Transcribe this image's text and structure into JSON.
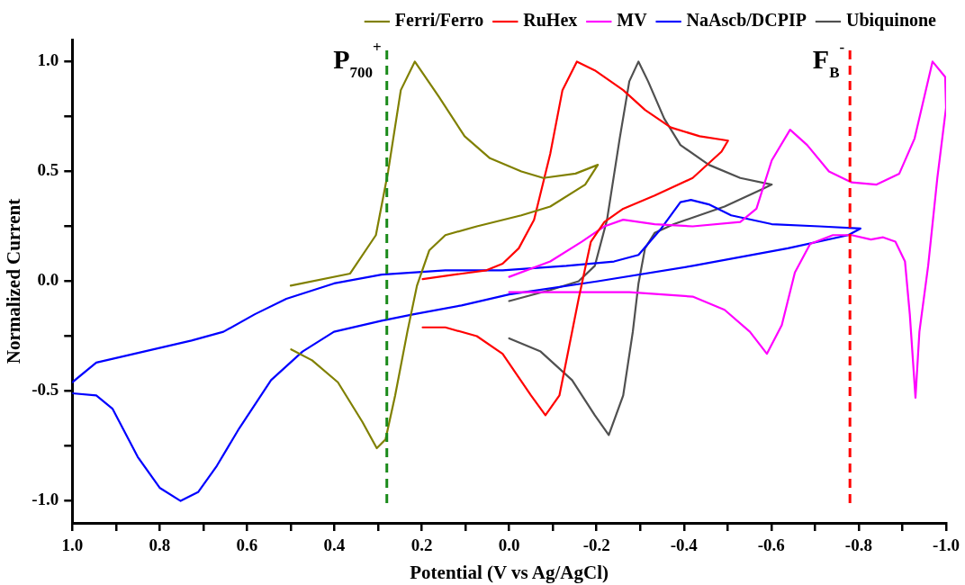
{
  "chart_data": {
    "type": "line",
    "xlabel": "Potential (V vs Ag/AgCl)",
    "ylabel": "Normalized Current",
    "xlim": [
      1.0,
      -1.0
    ],
    "ylim": [
      -1.1,
      1.1
    ],
    "xticks": [
      {
        "value": 1,
        "label": "1.0"
      },
      {
        "value": 0.9,
        "label": null
      },
      {
        "value": 0.8,
        "label": "0.8"
      },
      {
        "value": 0.7,
        "label": null
      },
      {
        "value": 0.6,
        "label": "0.6"
      },
      {
        "value": 0.5,
        "label": null
      },
      {
        "value": 0.4,
        "label": "0.4"
      },
      {
        "value": 0.3,
        "label": null
      },
      {
        "value": 0.2,
        "label": "0.2"
      },
      {
        "value": 0.1,
        "label": null
      },
      {
        "value": 0,
        "label": "0.0"
      },
      {
        "value": -0.1,
        "label": null
      },
      {
        "value": -0.2,
        "label": "-0.2"
      },
      {
        "value": -0.3,
        "label": null
      },
      {
        "value": -0.4,
        "label": "-0.4"
      },
      {
        "value": -0.5,
        "label": null
      },
      {
        "value": -0.6,
        "label": "-0.6"
      },
      {
        "value": -0.7,
        "label": null
      },
      {
        "value": -0.8,
        "label": "-0.8"
      },
      {
        "value": -0.9,
        "label": null
      },
      {
        "value": -1,
        "label": "-1.0"
      }
    ],
    "yticks": [
      {
        "value": -1,
        "label": "-1.0"
      },
      {
        "value": -0.75,
        "label": null
      },
      {
        "value": -0.5,
        "label": "-0.5"
      },
      {
        "value": -0.25,
        "label": null
      },
      {
        "value": 0,
        "label": "0.0"
      },
      {
        "value": 0.25,
        "label": null
      },
      {
        "value": 0.5,
        "label": "0.5"
      },
      {
        "value": 0.75,
        "label": null
      },
      {
        "value": 1,
        "label": "1.0"
      }
    ],
    "grid": false,
    "legend": "top",
    "marker": "none",
    "line_style": "solid",
    "ref_lines": [
      {
        "axis": "x",
        "value": 0.28,
        "label": "P$_{700}$$^{+}$",
        "color": "#1a8a1a",
        "line_style": "dashed"
      },
      {
        "axis": "x",
        "value": -0.78,
        "label": "F$_{B}$$^{-}$",
        "color": "#ff0000",
        "line_style": "dashed"
      }
    ],
    "series": [
      {
        "name": "Ferri/Ferro",
        "color": "#808000",
        "x": [
          0.5,
          0.364,
          0.305,
          0.277,
          0.248,
          0.216,
          0.161,
          0.102,
          0.044,
          -0.028,
          -0.078,
          -0.152,
          -0.203,
          -0.174,
          -0.094,
          -0.028,
          0.074,
          0.146,
          0.183,
          0.211,
          0.233,
          0.261,
          0.283,
          0.303,
          0.336,
          0.392,
          0.451,
          0.499
        ],
        "values": [
          -0.02,
          0.035,
          0.21,
          0.5,
          0.87,
          1.0,
          0.84,
          0.66,
          0.56,
          0.5,
          0.47,
          0.49,
          0.53,
          0.44,
          0.34,
          0.3,
          0.25,
          0.21,
          0.14,
          -0.02,
          -0.23,
          -0.52,
          -0.72,
          -0.76,
          -0.64,
          -0.46,
          -0.36,
          -0.31
        ]
      },
      {
        "name": "RuHex",
        "color": "#ff0000",
        "x": [
          0.198,
          0.052,
          0.015,
          -0.022,
          -0.057,
          -0.094,
          -0.122,
          -0.155,
          -0.196,
          -0.261,
          -0.311,
          -0.37,
          -0.436,
          -0.501,
          -0.486,
          -0.42,
          -0.333,
          -0.261,
          -0.218,
          -0.187,
          -0.159,
          -0.137,
          -0.115,
          -0.083,
          -0.05,
          0.015,
          0.074,
          0.146,
          0.198
        ],
        "values": [
          0.01,
          0.05,
          0.08,
          0.15,
          0.28,
          0.58,
          0.87,
          1.0,
          0.96,
          0.87,
          0.78,
          0.7,
          0.66,
          0.64,
          0.59,
          0.47,
          0.39,
          0.33,
          0.27,
          0.18,
          -0.08,
          -0.3,
          -0.52,
          -0.61,
          -0.52,
          -0.33,
          -0.25,
          -0.21,
          -0.21
        ]
      },
      {
        "name": "MV",
        "color": "#ff00ff",
        "x": [
          0.0,
          -0.094,
          -0.166,
          -0.218,
          -0.261,
          -0.333,
          -0.42,
          -0.529,
          -0.566,
          -0.601,
          -0.643,
          -0.682,
          -0.732,
          -0.784,
          -0.841,
          -0.893,
          -0.928,
          -0.969,
          -0.998,
          -1.0,
          -0.98,
          -0.959,
          -0.939,
          -0.93,
          -0.917,
          -0.906,
          -0.884,
          -0.856,
          -0.828,
          -0.784,
          -0.741,
          -0.689,
          -0.654,
          -0.624,
          -0.59,
          -0.551,
          -0.493,
          -0.42,
          -0.275,
          -0.057,
          0.0
        ],
        "values": [
          0.02,
          0.09,
          0.18,
          0.25,
          0.28,
          0.26,
          0.25,
          0.27,
          0.33,
          0.55,
          0.69,
          0.62,
          0.5,
          0.45,
          0.44,
          0.49,
          0.65,
          1.0,
          0.93,
          0.79,
          0.47,
          0.07,
          -0.23,
          -0.53,
          -0.15,
          0.09,
          0.18,
          0.2,
          0.19,
          0.21,
          0.21,
          0.17,
          0.04,
          -0.2,
          -0.33,
          -0.23,
          -0.13,
          -0.07,
          -0.05,
          -0.05,
          -0.05
        ]
      },
      {
        "name": "NaAscb/DCPIP",
        "color": "#0000ff",
        "x": [
          1.0,
          0.945,
          0.836,
          0.727,
          0.654,
          0.582,
          0.51,
          0.401,
          0.292,
          0.146,
          0.015,
          -0.131,
          -0.24,
          -0.296,
          -0.348,
          -0.392,
          -0.416,
          -0.457,
          -0.508,
          -0.601,
          -0.71,
          -0.804,
          -0.776,
          -0.638,
          -0.42,
          -0.203,
          0.0,
          0.109,
          0.218,
          0.292,
          0.401,
          0.473,
          0.545,
          0.618,
          0.669,
          0.712,
          0.752,
          0.8,
          0.85,
          0.908,
          0.945,
          1.0
        ],
        "values": [
          -0.46,
          -0.37,
          -0.32,
          -0.27,
          -0.23,
          -0.15,
          -0.08,
          -0.01,
          0.03,
          0.05,
          0.05,
          0.07,
          0.09,
          0.12,
          0.24,
          0.36,
          0.37,
          0.35,
          0.3,
          0.26,
          0.25,
          0.24,
          0.21,
          0.15,
          0.07,
          0.0,
          -0.06,
          -0.11,
          -0.15,
          -0.18,
          -0.23,
          -0.32,
          -0.45,
          -0.67,
          -0.84,
          -0.96,
          -1.0,
          -0.94,
          -0.8,
          -0.58,
          -0.52,
          -0.51
        ]
      },
      {
        "name": "Ubiquinone",
        "color": "#505050",
        "x": [
          0.0,
          -0.094,
          -0.159,
          -0.196,
          -0.224,
          -0.253,
          -0.275,
          -0.296,
          -0.318,
          -0.355,
          -0.392,
          -0.457,
          -0.529,
          -0.601,
          -0.58,
          -0.493,
          -0.377,
          -0.333,
          -0.311,
          -0.296,
          -0.283,
          -0.261,
          -0.228,
          -0.196,
          -0.144,
          -0.072,
          0.0
        ],
        "values": [
          -0.09,
          -0.04,
          0.0,
          0.07,
          0.28,
          0.65,
          0.91,
          1.0,
          0.91,
          0.74,
          0.62,
          0.53,
          0.47,
          0.44,
          0.42,
          0.34,
          0.26,
          0.22,
          0.15,
          -0.01,
          -0.23,
          -0.52,
          -0.7,
          -0.61,
          -0.45,
          -0.32,
          -0.26
        ]
      }
    ]
  }
}
